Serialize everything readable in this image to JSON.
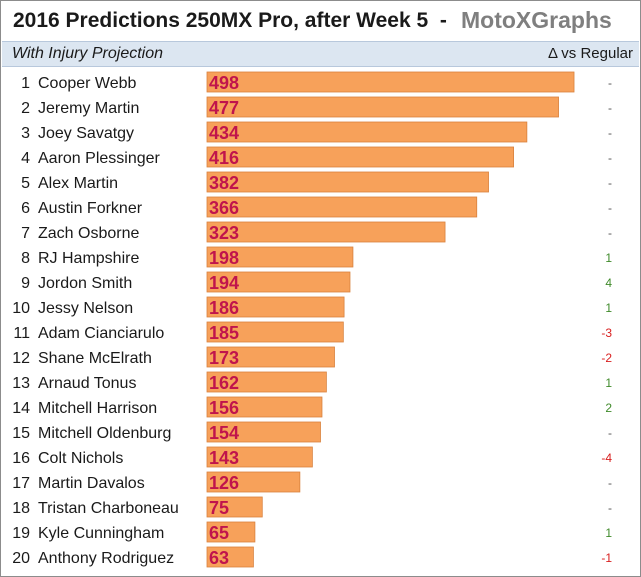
{
  "title": "2016 Predictions 250MX Pro, after Week 5",
  "title_sep": "-",
  "brand": "MotoXGraphs",
  "subtitle": "With Injury Projection",
  "delta_header": "Δ vs Regular",
  "colors": {
    "bar": "#f7a15a",
    "bar_border": "#d9823e",
    "value_text": "#c0144c",
    "positive": "#3f8a2a",
    "negative": "#d81e1e",
    "neutral": "#555555"
  },
  "chart_data": {
    "type": "bar",
    "orientation": "horizontal",
    "title": "2016 Predictions 250MX Pro, after Week 5",
    "ranks": [
      1,
      2,
      3,
      4,
      5,
      6,
      7,
      8,
      9,
      10,
      11,
      12,
      13,
      14,
      15,
      16,
      17,
      18,
      19,
      20
    ],
    "categories": [
      "Cooper Webb",
      "Jeremy Martin",
      "Joey Savatgy",
      "Aaron Plessinger",
      "Alex Martin",
      "Austin Forkner",
      "Zach Osborne",
      "RJ Hampshire",
      "Jordon Smith",
      "Jessy Nelson",
      "Adam Cianciarulo",
      "Shane McElrath",
      "Arnaud Tonus",
      "Mitchell Harrison",
      "Mitchell Oldenburg",
      "Colt Nichols",
      "Martin Davalos",
      "Tristan Charboneau",
      "Kyle Cunningham",
      "Anthony Rodriguez"
    ],
    "values": [
      498,
      477,
      434,
      416,
      382,
      366,
      323,
      198,
      194,
      186,
      185,
      173,
      162,
      156,
      154,
      143,
      126,
      75,
      65,
      63
    ],
    "deltas": [
      "-",
      "-",
      "-",
      "-",
      "-",
      "-",
      "-",
      "1",
      "4",
      "1",
      "-3",
      "-2",
      "1",
      "2",
      "-",
      "-4",
      "-",
      "-",
      "1",
      "-1"
    ],
    "xlim": [
      0,
      500
    ],
    "grid": false,
    "legend": "none"
  }
}
